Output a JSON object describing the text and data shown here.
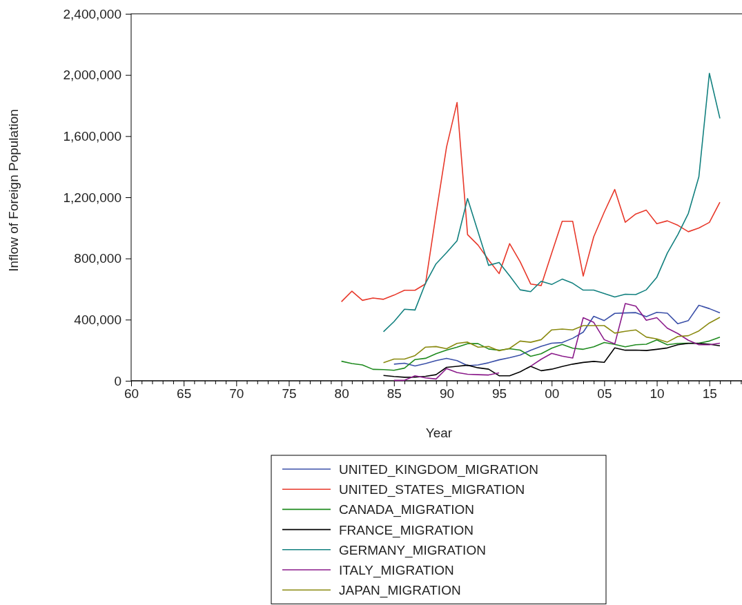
{
  "chart_data": {
    "type": "line",
    "xlabel": "Year",
    "ylabel": "Inflow of Foreign Population",
    "x": [
      1980,
      1981,
      1982,
      1983,
      1984,
      1985,
      1986,
      1987,
      1988,
      1989,
      1990,
      1991,
      1992,
      1993,
      1994,
      1995,
      1996,
      1997,
      1998,
      1999,
      2000,
      2001,
      2002,
      2003,
      2004,
      2005,
      2006,
      2007,
      2008,
      2009,
      2010,
      2011,
      2012,
      2013,
      2014,
      2015,
      2016
    ],
    "series": [
      {
        "name": "UNITED_KINGDOM_MIGRATION",
        "color": "#3a4fa8",
        "values": [
          null,
          null,
          null,
          null,
          null,
          109000,
          115000,
          97000,
          113000,
          132000,
          147000,
          132000,
          99000,
          104000,
          118000,
          137000,
          151000,
          168000,
          200000,
          226000,
          246000,
          250000,
          278000,
          318000,
          422000,
          394000,
          441000,
          444000,
          446000,
          420000,
          448000,
          442000,
          373000,
          394000,
          494000,
          472000,
          444000
        ]
      },
      {
        "name": "UNITED_STATES_MIGRATION",
        "color": "#e8382a",
        "values": [
          517000,
          586000,
          526000,
          541000,
          533000,
          560000,
          592000,
          592000,
          634000,
          1090000,
          1529000,
          1820000,
          956000,
          887000,
          791000,
          701000,
          897000,
          779000,
          633000,
          623000,
          835000,
          1043000,
          1043000,
          685000,
          942000,
          1103000,
          1251000,
          1037000,
          1091000,
          1116000,
          1027000,
          1046000,
          1017000,
          975000,
          999000,
          1036000,
          1168000
        ]
      },
      {
        "name": "CANADA_MIGRATION",
        "color": "#1e8a1e",
        "values": [
          128000,
          113000,
          104000,
          75000,
          73000,
          69000,
          83000,
          139000,
          147000,
          177000,
          201000,
          220000,
          243000,
          243000,
          208000,
          200000,
          210000,
          201000,
          160000,
          177000,
          213000,
          238000,
          213000,
          206000,
          222000,
          250000,
          238000,
          222000,
          236000,
          239000,
          267000,
          236000,
          245000,
          246000,
          246000,
          260000,
          285000
        ]
      },
      {
        "name": "FRANCE_MIGRATION",
        "color": "#000000",
        "values": [
          null,
          null,
          null,
          null,
          35000,
          28000,
          23000,
          24000,
          29000,
          40000,
          88000,
          95000,
          102000,
          85000,
          76000,
          33000,
          33000,
          59000,
          95000,
          66000,
          76000,
          94000,
          109000,
          120000,
          127000,
          121000,
          215000,
          200000,
          201000,
          198000,
          206000,
          215000,
          236000,
          245000,
          245000,
          239000,
          229000
        ]
      },
      {
        "name": "GERMANY_MIGRATION",
        "color": "#12807f",
        "values": [
          null,
          null,
          null,
          null,
          321000,
          387000,
          468000,
          463000,
          638000,
          765000,
          838000,
          916000,
          1192000,
          973000,
          755000,
          774000,
          687000,
          595000,
          583000,
          651000,
          630000,
          665000,
          638000,
          593000,
          593000,
          571000,
          548000,
          566000,
          564000,
          595000,
          677000,
          835000,
          956000,
          1095000,
          1334000,
          2011000,
          1716000
        ]
      },
      {
        "name": "ITALY_MIGRATION",
        "color": "#8a1a8a",
        "values": [
          null,
          null,
          null,
          null,
          null,
          3000,
          3000,
          33000,
          19000,
          12000,
          80000,
          54000,
          43000,
          40000,
          38000,
          52000,
          null,
          null,
          95000,
          141000,
          179000,
          161000,
          149000,
          413000,
          382000,
          269000,
          241000,
          505000,
          488000,
          396000,
          413000,
          344000,
          309000,
          265000,
          236000,
          236000,
          246000
        ]
      },
      {
        "name": "JAPAN_MIGRATION",
        "color": "#8a8a10",
        "values": [
          null,
          null,
          null,
          null,
          118000,
          142000,
          142000,
          165000,
          220000,
          224000,
          210000,
          245000,
          253000,
          220000,
          224000,
          196000,
          212000,
          260000,
          252000,
          269000,
          333000,
          338000,
          333000,
          361000,
          361000,
          361000,
          312000,
          324000,
          333000,
          286000,
          274000,
          253000,
          290000,
          295000,
          326000,
          378000,
          415000
        ]
      }
    ],
    "xlim": [
      1960,
      2018.3
    ],
    "xticks": [
      {
        "value": 1960,
        "label": "60"
      },
      {
        "value": 1961,
        "label": null
      },
      {
        "value": 1962,
        "label": null
      },
      {
        "value": 1963,
        "label": null
      },
      {
        "value": 1964,
        "label": null
      },
      {
        "value": 1965,
        "label": "65"
      },
      {
        "value": 1966,
        "label": null
      },
      {
        "value": 1967,
        "label": null
      },
      {
        "value": 1968,
        "label": null
      },
      {
        "value": 1969,
        "label": null
      },
      {
        "value": 1970,
        "label": "70"
      },
      {
        "value": 1971,
        "label": null
      },
      {
        "value": 1972,
        "label": null
      },
      {
        "value": 1973,
        "label": null
      },
      {
        "value": 1974,
        "label": null
      },
      {
        "value": 1975,
        "label": "75"
      },
      {
        "value": 1976,
        "label": null
      },
      {
        "value": 1977,
        "label": null
      },
      {
        "value": 1978,
        "label": null
      },
      {
        "value": 1979,
        "label": null
      },
      {
        "value": 1980,
        "label": "80"
      },
      {
        "value": 1981,
        "label": null
      },
      {
        "value": 1982,
        "label": null
      },
      {
        "value": 1983,
        "label": null
      },
      {
        "value": 1984,
        "label": null
      },
      {
        "value": 1985,
        "label": "85"
      },
      {
        "value": 1986,
        "label": null
      },
      {
        "value": 1987,
        "label": null
      },
      {
        "value": 1988,
        "label": null
      },
      {
        "value": 1989,
        "label": null
      },
      {
        "value": 1990,
        "label": "90"
      },
      {
        "value": 1991,
        "label": null
      },
      {
        "value": 1992,
        "label": null
      },
      {
        "value": 1993,
        "label": null
      },
      {
        "value": 1994,
        "label": null
      },
      {
        "value": 1995,
        "label": "95"
      },
      {
        "value": 1996,
        "label": null
      },
      {
        "value": 1997,
        "label": null
      },
      {
        "value": 1998,
        "label": null
      },
      {
        "value": 1999,
        "label": null
      },
      {
        "value": 2000,
        "label": "00"
      },
      {
        "value": 2001,
        "label": null
      },
      {
        "value": 2002,
        "label": null
      },
      {
        "value": 2003,
        "label": null
      },
      {
        "value": 2004,
        "label": null
      },
      {
        "value": 2005,
        "label": "05"
      },
      {
        "value": 2006,
        "label": null
      },
      {
        "value": 2007,
        "label": null
      },
      {
        "value": 2008,
        "label": null
      },
      {
        "value": 2009,
        "label": null
      },
      {
        "value": 2010,
        "label": "10"
      },
      {
        "value": 2011,
        "label": null
      },
      {
        "value": 2012,
        "label": null
      },
      {
        "value": 2013,
        "label": null
      },
      {
        "value": 2014,
        "label": null
      },
      {
        "value": 2015,
        "label": "15"
      },
      {
        "value": 2016,
        "label": null
      },
      {
        "value": 2017,
        "label": null
      },
      {
        "value": 2018,
        "label": null
      }
    ],
    "ylim": [
      0,
      2400000
    ],
    "yticks": [
      0,
      {
        "value": 400000,
        "label": "400,000"
      },
      {
        "value": 800000,
        "label": "800,000"
      },
      {
        "value": 1200000,
        "label": "1,200,000"
      },
      {
        "value": 1600000,
        "label": "1,600,000"
      },
      {
        "value": 2000000,
        "label": "2,000,000"
      },
      {
        "value": 2400000,
        "label": "2,400,000"
      }
    ],
    "grid": false,
    "legend": "bottom",
    "marker": "none",
    "line_style": "solid"
  }
}
